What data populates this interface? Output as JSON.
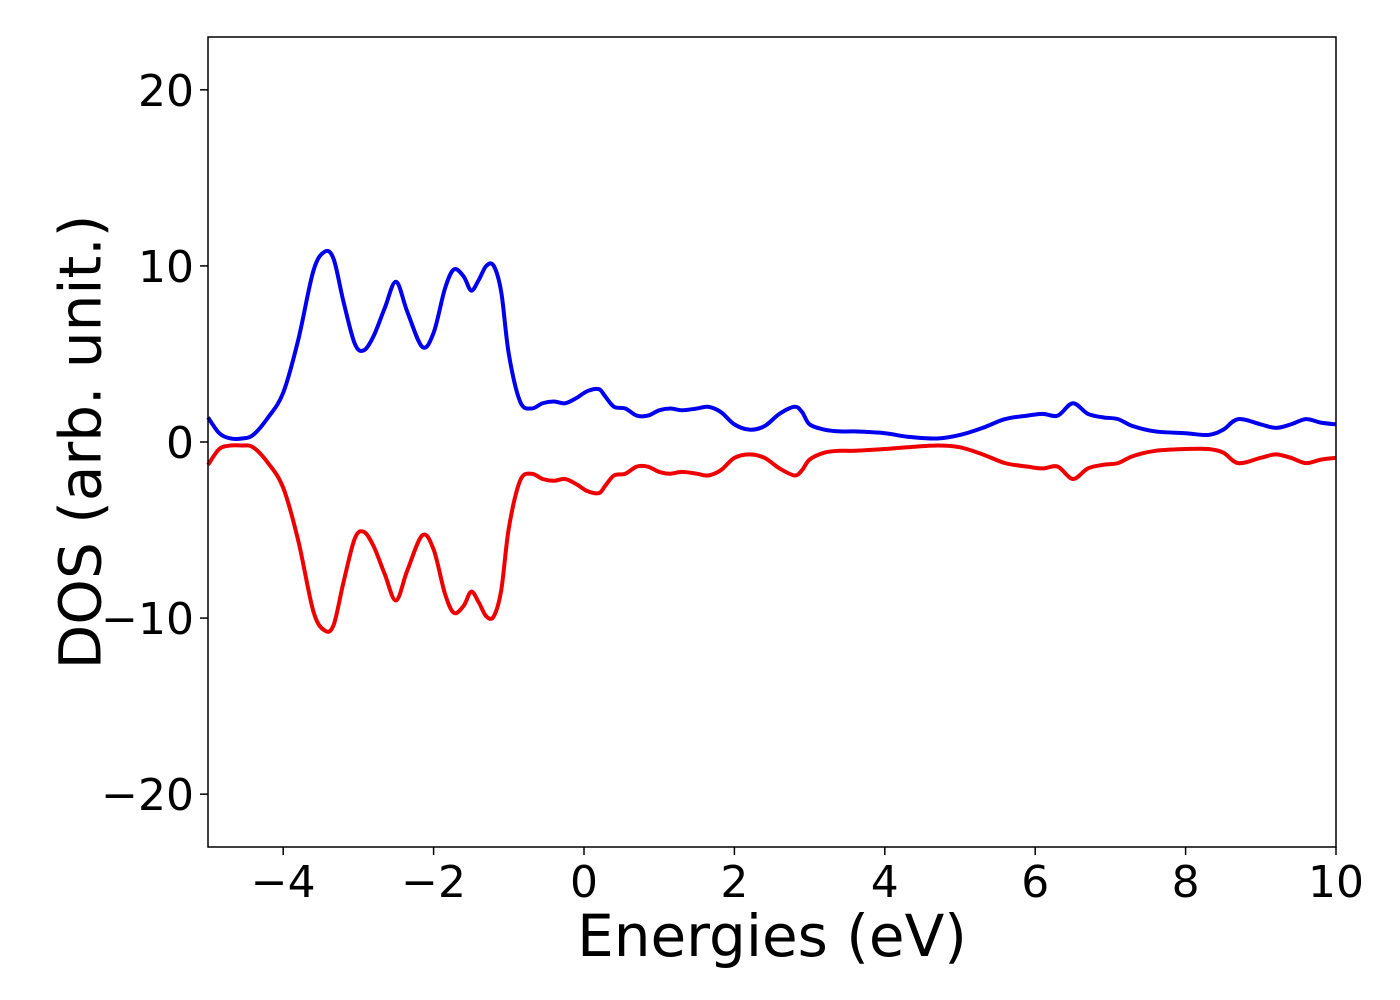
{
  "chart_data": {
    "type": "line",
    "title": "",
    "xlabel": "Energies (eV)",
    "ylabel": "DOS (arb. unit.)",
    "xlim": [
      -5,
      10
    ],
    "ylim": [
      -23,
      23
    ],
    "x_ticks": [
      -4,
      -2,
      0,
      2,
      4,
      6,
      8,
      10
    ],
    "x_tick_labels": [
      "−4",
      "−2",
      "0",
      "2",
      "4",
      "6",
      "8",
      "10"
    ],
    "y_ticks": [
      -20,
      -10,
      0,
      10,
      20
    ],
    "y_tick_labels": [
      "−20",
      "−10",
      "0",
      "10",
      "20"
    ],
    "grid": false,
    "legend": "none",
    "series": [
      {
        "color": "#0000ee",
        "x": [
          -5.0,
          -4.85,
          -4.7,
          -4.55,
          -4.4,
          -4.2,
          -4.0,
          -3.8,
          -3.6,
          -3.45,
          -3.33,
          -3.2,
          -3.05,
          -2.93,
          -2.8,
          -2.65,
          -2.5,
          -2.35,
          -2.15,
          -2.0,
          -1.85,
          -1.73,
          -1.6,
          -1.5,
          -1.4,
          -1.3,
          -1.2,
          -1.1,
          -1.0,
          -0.85,
          -0.7,
          -0.55,
          -0.4,
          -0.25,
          -0.1,
          0.05,
          0.2,
          0.28,
          0.4,
          0.55,
          0.7,
          0.85,
          1.0,
          1.15,
          1.3,
          1.5,
          1.65,
          1.82,
          2.0,
          2.2,
          2.4,
          2.6,
          2.8,
          2.9,
          3.0,
          3.2,
          3.4,
          3.6,
          4.0,
          4.3,
          4.7,
          5.0,
          5.3,
          5.6,
          5.9,
          6.1,
          6.3,
          6.5,
          6.7,
          6.9,
          7.1,
          7.3,
          7.6,
          8.0,
          8.3,
          8.5,
          8.7,
          9.0,
          9.2,
          9.4,
          9.6,
          9.8,
          10.0
        ],
        "values": [
          1.4,
          0.5,
          0.2,
          0.2,
          0.4,
          1.4,
          2.8,
          5.8,
          9.7,
          10.8,
          10.4,
          8.0,
          5.6,
          5.2,
          6.0,
          7.6,
          9.1,
          7.4,
          5.4,
          6.2,
          8.7,
          9.8,
          9.4,
          8.6,
          9.2,
          10.0,
          10.0,
          8.5,
          5.0,
          2.3,
          1.9,
          2.2,
          2.3,
          2.2,
          2.5,
          2.9,
          3.0,
          2.6,
          2.0,
          1.9,
          1.5,
          1.5,
          1.8,
          1.9,
          1.8,
          1.9,
          2.0,
          1.7,
          1.0,
          0.7,
          0.9,
          1.6,
          2.0,
          1.7,
          1.0,
          0.7,
          0.6,
          0.6,
          0.5,
          0.3,
          0.2,
          0.4,
          0.8,
          1.3,
          1.5,
          1.6,
          1.5,
          2.2,
          1.6,
          1.4,
          1.3,
          0.9,
          0.6,
          0.5,
          0.4,
          0.7,
          1.3,
          1.0,
          0.8,
          1.0,
          1.3,
          1.1,
          1.0
        ]
      },
      {
        "color": "#ee0000",
        "x": [
          -5.0,
          -4.85,
          -4.7,
          -4.55,
          -4.4,
          -4.2,
          -4.0,
          -3.8,
          -3.6,
          -3.45,
          -3.33,
          -3.2,
          -3.05,
          -2.93,
          -2.8,
          -2.65,
          -2.5,
          -2.35,
          -2.15,
          -2.0,
          -1.85,
          -1.73,
          -1.6,
          -1.5,
          -1.4,
          -1.3,
          -1.2,
          -1.1,
          -1.0,
          -0.85,
          -0.7,
          -0.55,
          -0.4,
          -0.25,
          -0.1,
          0.05,
          0.2,
          0.28,
          0.4,
          0.55,
          0.7,
          0.85,
          1.0,
          1.15,
          1.3,
          1.5,
          1.65,
          1.82,
          2.0,
          2.2,
          2.4,
          2.6,
          2.8,
          2.9,
          3.0,
          3.2,
          3.4,
          3.6,
          4.0,
          4.3,
          4.7,
          5.0,
          5.3,
          5.6,
          5.9,
          6.1,
          6.3,
          6.5,
          6.7,
          6.9,
          7.1,
          7.3,
          7.6,
          8.0,
          8.3,
          8.5,
          8.7,
          9.0,
          9.2,
          9.4,
          9.6,
          9.8,
          10.0
        ],
        "values": [
          -1.3,
          -0.4,
          -0.2,
          -0.2,
          -0.3,
          -1.2,
          -2.6,
          -5.6,
          -9.6,
          -10.7,
          -10.4,
          -8.0,
          -5.5,
          -5.1,
          -5.9,
          -7.5,
          -9.0,
          -7.3,
          -5.3,
          -6.1,
          -8.6,
          -9.7,
          -9.3,
          -8.5,
          -9.1,
          -9.9,
          -9.9,
          -8.4,
          -4.9,
          -2.2,
          -1.8,
          -2.1,
          -2.2,
          -2.1,
          -2.4,
          -2.8,
          -2.9,
          -2.5,
          -1.9,
          -1.8,
          -1.4,
          -1.4,
          -1.7,
          -1.8,
          -1.7,
          -1.8,
          -1.9,
          -1.6,
          -0.9,
          -0.7,
          -0.9,
          -1.5,
          -1.9,
          -1.6,
          -1.0,
          -0.6,
          -0.5,
          -0.5,
          -0.4,
          -0.3,
          -0.2,
          -0.3,
          -0.7,
          -1.2,
          -1.4,
          -1.5,
          -1.4,
          -2.1,
          -1.5,
          -1.3,
          -1.2,
          -0.8,
          -0.5,
          -0.4,
          -0.4,
          -0.6,
          -1.2,
          -0.9,
          -0.7,
          -0.9,
          -1.2,
          -1.0,
          -0.9
        ]
      }
    ]
  }
}
